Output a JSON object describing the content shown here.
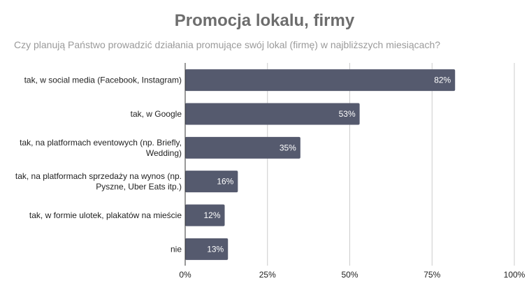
{
  "chart_data": {
    "type": "bar",
    "orientation": "horizontal",
    "title": "Promocja lokalu, firmy",
    "subtitle": "Czy planują Państwo prowadzić działania promujące swój lokal (firmę) w najbliższych miesiącach?",
    "categories": [
      [
        "tak, w social media (Facebook, Instagram)"
      ],
      [
        "tak, w Google"
      ],
      [
        "tak, na platformach eventowych (np. Briefly,",
        "Wedding)"
      ],
      [
        "tak, na platformach sprzedaży na wynos (np.",
        "Pyszne, Uber Eats itp.)"
      ],
      [
        "tak, w formie ulotek, plakatów na mieście"
      ],
      [
        "nie"
      ]
    ],
    "values": [
      82,
      53,
      35,
      16,
      12,
      13
    ],
    "value_labels": [
      "82%",
      "53%",
      "35%",
      "16%",
      "12%",
      "13%"
    ],
    "x_ticks": [
      0,
      25,
      50,
      75,
      100
    ],
    "x_tick_labels": [
      "0%",
      "25%",
      "50%",
      "75%",
      "100%"
    ],
    "xlim": [
      0,
      100
    ],
    "grid": true,
    "legend": "none",
    "bar_color": "#555a6e",
    "grid_color": "#cccccc"
  }
}
